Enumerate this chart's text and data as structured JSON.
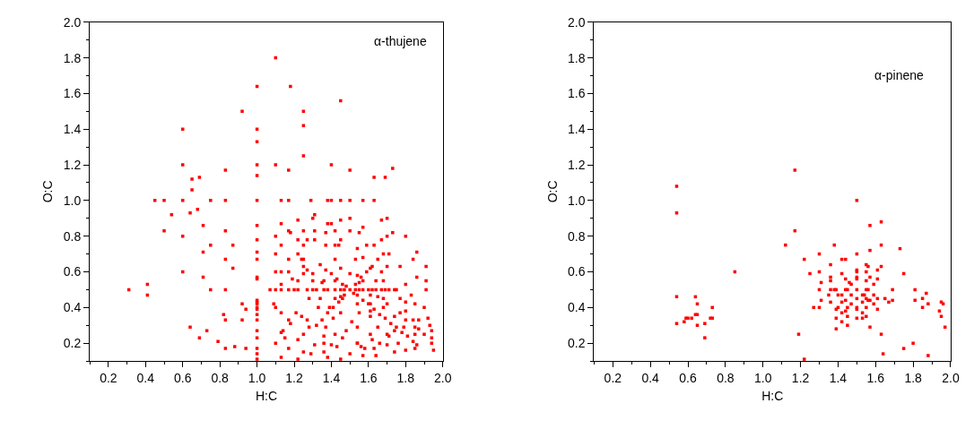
{
  "chart_data": [
    {
      "type": "scatter",
      "xlabel": "H:C",
      "ylabel": "O:C",
      "annotations": [
        "α-thujene"
      ],
      "marker": "square",
      "xlim": [
        0.1,
        2.0
      ],
      "ylim": [
        0.1,
        2.0
      ],
      "xticks": [
        {
          "value": 0.1,
          "label": null
        },
        0.2,
        {
          "value": 0.3,
          "label": null
        },
        0.4,
        {
          "value": 0.5,
          "label": null
        },
        0.6,
        {
          "value": 0.7,
          "label": null
        },
        0.8,
        {
          "value": 0.9,
          "label": null
        },
        {
          "value": 1.0,
          "label": "1.0"
        },
        {
          "value": 1.1,
          "label": null
        },
        1.2,
        {
          "value": 1.3,
          "label": null
        },
        1.4,
        {
          "value": 1.5,
          "label": null
        },
        1.6,
        {
          "value": 1.7,
          "label": null
        },
        1.8,
        {
          "value": 1.9,
          "label": null
        },
        {
          "value": 2.0,
          "label": "2.0"
        }
      ],
      "yticks": [
        {
          "value": 0.1,
          "label": null
        },
        0.2,
        {
          "value": 0.3,
          "label": null
        },
        0.4,
        {
          "value": 0.5,
          "label": null
        },
        0.6,
        {
          "value": 0.7,
          "label": null
        },
        0.8,
        {
          "value": 0.9,
          "label": null
        },
        {
          "value": 1.0,
          "label": "1.0"
        },
        {
          "value": 1.1,
          "label": null
        },
        1.2,
        {
          "value": 1.3,
          "label": null
        },
        1.4,
        {
          "value": 1.5,
          "label": null
        },
        1.6,
        {
          "value": 1.7,
          "label": null
        },
        1.8,
        {
          "value": 1.9,
          "label": null
        },
        {
          "value": 2.0,
          "label": "2.0"
        }
      ],
      "series": [
        {
          "color": "#ff0000",
          "x": [
            1.1,
            1.0,
            1.18,
            1.45,
            0.92,
            1.25,
            1.25,
            0.6,
            1.0,
            1.0,
            1.25,
            0.6,
            1.0,
            1.1,
            1.4,
            0.83,
            1.17,
            1.0,
            1.5,
            1.73,
            0.65,
            0.69,
            1.63,
            1.69,
            0.65,
            0.45,
            0.5,
            0.6,
            0.75,
            0.83,
            1.0,
            1.13,
            1.17,
            1.29,
            1.38,
            1.4,
            1.45,
            1.5,
            1.57,
            1.63,
            0.54,
            0.64,
            0.68,
            0.5,
            0.71,
            0.83,
            0.6,
            0.75,
            0.87,
            0.71,
            0.83,
            0.87,
            0.6,
            0.71,
            0.31,
            0.41,
            0.41,
            0.75,
            0.83,
            0.92,
            0.94,
            0.82,
            0.83,
            0.92,
            0.64,
            0.73,
            0.69,
            0.79,
            0.83,
            0.88,
            0.94,
            1.0,
            1.0,
            1.0,
            1.0,
            1.0,
            1.0,
            1.0,
            1.0,
            1.0,
            1.0,
            1.0,
            1.0,
            1.0,
            1.0,
            1.0,
            1.0,
            1.0,
            1.0,
            1.07,
            1.1,
            1.13,
            1.17,
            1.2,
            1.22,
            1.27,
            1.3,
            1.32,
            1.36,
            1.38,
            1.42,
            1.45,
            1.47,
            1.5,
            1.53,
            1.55,
            1.57,
            1.6,
            1.62,
            1.64,
            1.67,
            1.69,
            1.71,
            1.74,
            1.75,
            1.91,
            1.34,
            1.37,
            1.4,
            1.43,
            1.46,
            1.48,
            1.52,
            1.54,
            1.57,
            1.6,
            1.63,
            1.66,
            1.69,
            1.72,
            1.75,
            1.78,
            1.81,
            1.84,
            1.86,
            1.32,
            1.35,
            1.38,
            1.41,
            1.44,
            1.47,
            1.53,
            1.56,
            1.59,
            1.62,
            1.65,
            1.68,
            1.5,
            1.55,
            1.65,
            1.7,
            1.8,
            1.85,
            1.9,
            1.25,
            1.3,
            1.35,
            1.45,
            1.55,
            1.65,
            1.7,
            1.8,
            1.91,
            1.91,
            1.9,
            1.92,
            1.93,
            1.94,
            1.94,
            1.94,
            1.95,
            1.31,
            1.3,
            1.22,
            1.13,
            1.17,
            1.18,
            1.25,
            1.31,
            1.38,
            1.4,
            1.45,
            1.5,
            1.67,
            1.7,
            1.57,
            1.73,
            1.8,
            1.37,
            1.42,
            1.5,
            1.55,
            1.1,
            1.22,
            1.27,
            1.31,
            1.45,
            1.67,
            1.7,
            1.13,
            1.25,
            1.37,
            1.42,
            1.44,
            1.59,
            1.63,
            1.1,
            1.22,
            1.25,
            1.17,
            1.24,
            1.71,
            1.86,
            1.84,
            1.7,
            1.77,
            1.1,
            1.13,
            1.13,
            1.17,
            1.19,
            1.22,
            1.25,
            1.27,
            1.8,
            1.86,
            1.83,
            1.77,
            1.8,
            1.85,
            1.09,
            1.13,
            1.1,
            1.17,
            1.18,
            1.21,
            1.24,
            1.27,
            1.22,
            1.25,
            1.13,
            1.14,
            1.15,
            1.1,
            1.17,
            1.13,
            1.22,
            1.25,
            1.29,
            1.31,
            1.36,
            1.36,
            1.38,
            1.4,
            1.43,
            1.45,
            1.46,
            1.5,
            1.54,
            1.56,
            1.58,
            1.63,
            1.64,
            1.57,
            1.66,
            1.7,
            1.74,
            1.71,
            1.61,
            1.74,
            1.79,
            1.84,
            1.87,
            1.77,
            1.74,
            1.8,
            1.87,
            1.85,
            1.76,
            1.85,
            1.61,
            1.68,
            1.61,
            1.54,
            1.45,
            1.41,
            1.39,
            1.42,
            1.46,
            1.33,
            1.34,
            1.28,
            1.3,
            1.36,
            1.42,
            1.45,
            1.42,
            1.53,
            1.57,
            1.54,
            1.61,
            1.64,
            1.68,
            1.67,
            1.57,
            1.54,
            1.61,
            1.68,
            1.61,
            1.51,
            1.54,
            1.48,
            1.42,
            1.37,
            1.36,
            1.28,
            1.54,
            1.62
          ],
          "values": [
            1.8,
            1.64,
            1.64,
            1.56,
            1.5,
            1.5,
            1.42,
            1.4,
            1.4,
            1.33,
            1.25,
            1.2,
            1.2,
            1.2,
            1.2,
            1.17,
            1.17,
            1.14,
            1.17,
            1.18,
            1.12,
            1.13,
            1.13,
            1.13,
            1.06,
            1.0,
            1.0,
            1.0,
            1.0,
            1.0,
            1.0,
            1.0,
            1.0,
            1.0,
            1.0,
            1.0,
            1.0,
            1.0,
            1.0,
            1.0,
            0.92,
            0.93,
            0.95,
            0.83,
            0.86,
            0.83,
            0.8,
            0.75,
            0.75,
            0.71,
            0.67,
            0.62,
            0.6,
            0.57,
            0.5,
            0.53,
            0.47,
            0.5,
            0.5,
            0.42,
            0.39,
            0.36,
            0.33,
            0.33,
            0.29,
            0.27,
            0.23,
            0.21,
            0.17,
            0.18,
            0.17,
            0.86,
            0.78,
            0.71,
            0.67,
            0.57,
            0.56,
            0.44,
            0.43,
            0.42,
            0.4,
            0.39,
            0.36,
            0.33,
            0.27,
            0.23,
            0.17,
            0.14,
            0.11,
            0.5,
            0.5,
            0.5,
            0.5,
            0.5,
            0.5,
            0.5,
            0.5,
            0.5,
            0.5,
            0.5,
            0.5,
            0.5,
            0.5,
            0.5,
            0.5,
            0.5,
            0.5,
            0.5,
            0.5,
            0.5,
            0.5,
            0.5,
            0.5,
            0.5,
            0.5,
            0.5,
            0.64,
            0.61,
            0.59,
            0.56,
            0.53,
            0.52,
            0.48,
            0.47,
            0.44,
            0.42,
            0.39,
            0.36,
            0.34,
            0.31,
            0.29,
            0.26,
            0.24,
            0.21,
            0.19,
            0.3,
            0.33,
            0.37,
            0.4,
            0.43,
            0.47,
            0.53,
            0.57,
            0.6,
            0.63,
            0.67,
            0.7,
            0.59,
            0.54,
            0.46,
            0.42,
            0.33,
            0.29,
            0.25,
            0.63,
            0.59,
            0.54,
            0.46,
            0.37,
            0.29,
            0.25,
            0.16,
            0.63,
            0.55,
            0.4,
            0.34,
            0.3,
            0.27,
            0.23,
            0.2,
            0.16,
            0.92,
            0.9,
            0.89,
            0.87,
            0.83,
            0.82,
            0.83,
            0.83,
            0.87,
            0.87,
            0.89,
            0.9,
            0.89,
            0.9,
            0.85,
            0.82,
            0.8,
            0.82,
            0.83,
            0.83,
            0.82,
            0.8,
            0.78,
            0.78,
            0.78,
            0.78,
            0.78,
            0.8,
            0.75,
            0.75,
            0.75,
            0.75,
            0.75,
            0.75,
            0.75,
            0.7,
            0.7,
            0.67,
            0.67,
            0.67,
            0.7,
            0.71,
            0.67,
            0.63,
            0.63,
            0.6,
            0.6,
            0.53,
            0.6,
            0.56,
            0.55,
            0.59,
            0.61,
            0.53,
            0.57,
            0.47,
            0.45,
            0.43,
            0.42,
            0.42,
            0.37,
            0.4,
            0.33,
            0.31,
            0.37,
            0.35,
            0.33,
            0.22,
            0.25,
            0.26,
            0.27,
            0.23,
            0.2,
            0.17,
            0.12,
            0.11,
            0.15,
            0.14,
            0.19,
            0.2,
            0.15,
            0.12,
            0.19,
            0.18,
            0.11,
            0.23,
            0.14,
            0.2,
            0.18,
            0.17,
            0.17,
            0.13,
            0.13,
            0.2,
            0.19,
            0.15,
            0.24,
            0.25,
            0.27,
            0.29,
            0.33,
            0.33,
            0.37,
            0.35,
            0.38,
            0.28,
            0.25,
            0.2,
            0.17,
            0.35,
            0.4,
            0.42,
            0.42,
            0.37,
            0.34,
            0.4,
            0.45,
            0.45,
            0.4,
            0.45,
            0.45,
            0.55,
            0.55,
            0.55,
            0.62,
            0.67,
            0.67,
            0.68,
            0.73,
            0.62,
            0.55,
            0.55,
            0.6,
            0.55,
            0.58,
            0.47,
            0.45,
            0.38,
            0.32,
            0.29,
            0.27,
            0.25,
            0.29,
            0.24,
            0.29,
            0.2,
            0.22
          ]
        }
      ]
    },
    {
      "type": "scatter",
      "xlabel": "H:C",
      "ylabel": "O:C",
      "annotations": [
        "α-pinene"
      ],
      "marker": "square",
      "xlim": [
        0.1,
        2.0
      ],
      "ylim": [
        0.1,
        2.0
      ],
      "xticks": [
        {
          "value": 0.1,
          "label": null
        },
        0.2,
        {
          "value": 0.3,
          "label": null
        },
        0.4,
        {
          "value": 0.5,
          "label": null
        },
        0.6,
        {
          "value": 0.7,
          "label": null
        },
        0.8,
        {
          "value": 0.9,
          "label": null
        },
        {
          "value": 1.0,
          "label": "1.0"
        },
        {
          "value": 1.1,
          "label": null
        },
        1.2,
        {
          "value": 1.3,
          "label": null
        },
        1.4,
        {
          "value": 1.5,
          "label": null
        },
        1.6,
        {
          "value": 1.7,
          "label": null
        },
        1.8,
        {
          "value": 1.9,
          "label": null
        },
        {
          "value": 2.0,
          "label": "2.0"
        }
      ],
      "yticks": [
        {
          "value": 0.1,
          "label": null
        },
        0.2,
        {
          "value": 0.3,
          "label": null
        },
        0.4,
        {
          "value": 0.5,
          "label": null
        },
        0.6,
        {
          "value": 0.7,
          "label": null
        },
        0.8,
        {
          "value": 0.9,
          "label": null
        },
        {
          "value": 1.0,
          "label": "1.0"
        },
        {
          "value": 1.1,
          "label": null
        },
        1.2,
        {
          "value": 1.3,
          "label": null
        },
        1.4,
        {
          "value": 1.5,
          "label": null
        },
        1.6,
        {
          "value": 1.7,
          "label": null
        },
        1.8,
        {
          "value": 1.9,
          "label": null
        },
        {
          "value": 2.0,
          "label": "2.0"
        }
      ],
      "series": [
        {
          "color": "#ff0000",
          "x": [
            0.54,
            0.54,
            0.54,
            0.54,
            0.58,
            0.59,
            0.6,
            0.62,
            0.64,
            0.65,
            0.64,
            0.65,
            0.65,
            0.69,
            0.69,
            0.72,
            0.73,
            0.73,
            0.85,
            1.12,
            1.17,
            1.17,
            1.19,
            1.22,
            1.22,
            1.25,
            1.27,
            1.3,
            1.3,
            1.31,
            1.3,
            1.3,
            1.31,
            1.35,
            1.36,
            1.36,
            1.36,
            1.36,
            1.36,
            1.38,
            1.38,
            1.39,
            1.39,
            1.39,
            1.39,
            1.4,
            1.4,
            1.42,
            1.42,
            1.42,
            1.42,
            1.42,
            1.42,
            1.44,
            1.44,
            1.44,
            1.44,
            1.44,
            1.45,
            1.45,
            1.45,
            1.45,
            1.46,
            1.47,
            1.47,
            1.47,
            1.5,
            1.5,
            1.5,
            1.5,
            1.5,
            1.5,
            1.5,
            1.5,
            1.5,
            1.5,
            1.5,
            1.53,
            1.53,
            1.53,
            1.53,
            1.54,
            1.55,
            1.55,
            1.55,
            1.55,
            1.55,
            1.55,
            1.55,
            1.56,
            1.56,
            1.56,
            1.57,
            1.57,
            1.57,
            1.57,
            1.57,
            1.59,
            1.59,
            1.59,
            1.61,
            1.61,
            1.61,
            1.61,
            1.63,
            1.63,
            1.63,
            1.63,
            1.64,
            1.65,
            1.67,
            1.69,
            1.69,
            1.73,
            1.75,
            1.75,
            1.8,
            1.81,
            1.81,
            1.85,
            1.85,
            1.87,
            1.88,
            1.88,
            1.94,
            1.95,
            1.96,
            1.95,
            1.97
          ],
          "values": [
            1.08,
            0.93,
            0.46,
            0.31,
            0.32,
            0.34,
            0.34,
            0.34,
            0.46,
            0.42,
            0.36,
            0.36,
            0.3,
            0.31,
            0.23,
            0.34,
            0.4,
            0.34,
            0.6,
            0.75,
            1.17,
            0.83,
            0.25,
            0.67,
            0.11,
            0.59,
            0.4,
            0.7,
            0.6,
            0.54,
            0.5,
            0.4,
            0.44,
            0.47,
            0.43,
            0.57,
            0.64,
            0.55,
            0.5,
            0.75,
            0.5,
            0.5,
            0.39,
            0.34,
            0.28,
            0.47,
            0.4,
            0.67,
            0.59,
            0.47,
            0.43,
            0.37,
            0.32,
            0.38,
            0.5,
            0.67,
            0.56,
            0.44,
            0.4,
            0.5,
            0.35,
            0.3,
            0.54,
            0.53,
            0.47,
            0.42,
            1.0,
            0.7,
            0.61,
            0.6,
            0.57,
            0.56,
            0.5,
            0.45,
            0.4,
            0.39,
            0.34,
            0.47,
            0.43,
            0.37,
            0.34,
            0.47,
            0.64,
            0.6,
            0.55,
            0.5,
            0.45,
            0.4,
            0.35,
            0.63,
            0.5,
            0.44,
            0.86,
            0.72,
            0.57,
            0.44,
            0.29,
            0.53,
            0.47,
            0.42,
            0.61,
            0.56,
            0.45,
            0.39,
            0.88,
            0.75,
            0.63,
            0.25,
            0.14,
            0.45,
            0.43,
            0.5,
            0.44,
            0.73,
            0.59,
            0.17,
            0.2,
            0.5,
            0.44,
            0.45,
            0.4,
            0.48,
            0.42,
            0.13,
            0.38,
            0.43,
            0.42,
            0.35,
            0.29
          ]
        }
      ]
    }
  ]
}
